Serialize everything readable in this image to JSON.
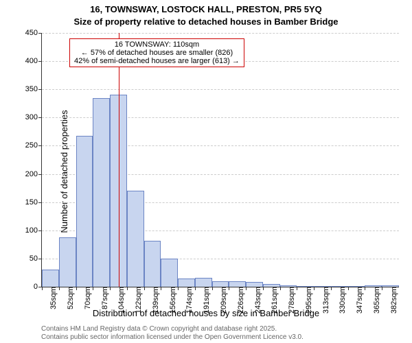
{
  "title_line1": "16, TOWNSWAY, LOSTOCK HALL, PRESTON, PR5 5YQ",
  "title_line2": "Size of property relative to detached houses in Bamber Bridge",
  "ylabel": "Number of detached properties",
  "xlabel": "Distribution of detached houses by size in Bamber Bridge",
  "footer_line1": "Contains HM Land Registry data © Crown copyright and database right 2025.",
  "footer_line2": "Contains public sector information licensed under the Open Government Licence v3.0.",
  "title_fontsize": 13,
  "label_fontsize": 13,
  "tick_fontsize": 11,
  "footer_fontsize": 10,
  "footer_color": "#666666",
  "chart": {
    "type": "histogram",
    "ylim": [
      0,
      450
    ],
    "ytick_step": 50,
    "bar_color": "#c8d5ef",
    "bar_border_color": "#6b84c4",
    "grid_color": "#cccccc",
    "axis_color": "#333333",
    "background_color": "#ffffff",
    "categories": [
      "35sqm",
      "52sqm",
      "70sqm",
      "87sqm",
      "104sqm",
      "122sqm",
      "139sqm",
      "156sqm",
      "174sqm",
      "191sqm",
      "209sqm",
      "226sqm",
      "243sqm",
      "261sqm",
      "278sqm",
      "295sqm",
      "313sqm",
      "330sqm",
      "347sqm",
      "365sqm",
      "382sqm"
    ],
    "values": [
      30,
      88,
      268,
      335,
      340,
      170,
      82,
      50,
      15,
      16,
      10,
      10,
      8,
      5,
      3,
      0,
      0,
      0,
      0,
      3,
      3
    ],
    "marker": {
      "label": "16 TOWNSWAY: 110sqm",
      "value_sqm": 110,
      "x_min_sqm": 35,
      "x_max_sqm": 382,
      "line_color": "#cc0000",
      "box_border_color": "#cc0000"
    },
    "annotation_lines": [
      "← 57% of detached houses are smaller (826)",
      "42% of semi-detached houses are larger (613) →"
    ],
    "annotation_fontsize": 11
  }
}
